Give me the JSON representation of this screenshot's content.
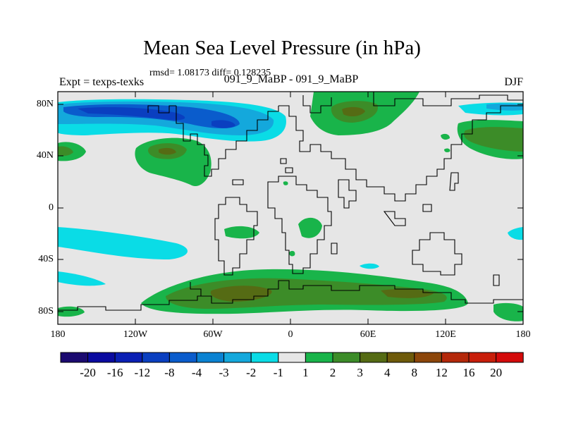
{
  "title": "Mean Sea Level Pressure (in hPa)",
  "stats": "rmsd= 1.08173  diff= 0.128235",
  "left_label": "Expt = texps-texks",
  "center_label": "091_9_MaBP - 091_9_MaBP",
  "right_label": "DJF",
  "y_ticks": [
    "80N",
    "40N",
    "0",
    "40S",
    "80S"
  ],
  "x_ticks": [
    "180",
    "120W",
    "60W",
    "0",
    "60E",
    "120E",
    "180"
  ],
  "colorbar": {
    "colors": [
      "#1b0a70",
      "#0a0aa0",
      "#0a1fb4",
      "#0a3fc0",
      "#0a5ccc",
      "#0a82d2",
      "#14a8dc",
      "#0adce6",
      "#e6e6e6",
      "#19b44a",
      "#3c8c28",
      "#556b14",
      "#6e5a0a",
      "#8c460a",
      "#b4280a",
      "#c81e0a",
      "#d40a0a"
    ],
    "labels": [
      "-20",
      "-16",
      "-12",
      "-8",
      "-4",
      "-3",
      "-2",
      "-1",
      "1",
      "2",
      "3",
      "4",
      "8",
      "12",
      "16",
      "20"
    ]
  },
  "palette": {
    "neutral": "#e6e6e6",
    "cyan": "#0adce6",
    "blue2": "#14a8dc",
    "blue4": "#0a5ccc",
    "green": "#19b44a",
    "dkgreen": "#3c8c28",
    "olive": "#556b14"
  }
}
